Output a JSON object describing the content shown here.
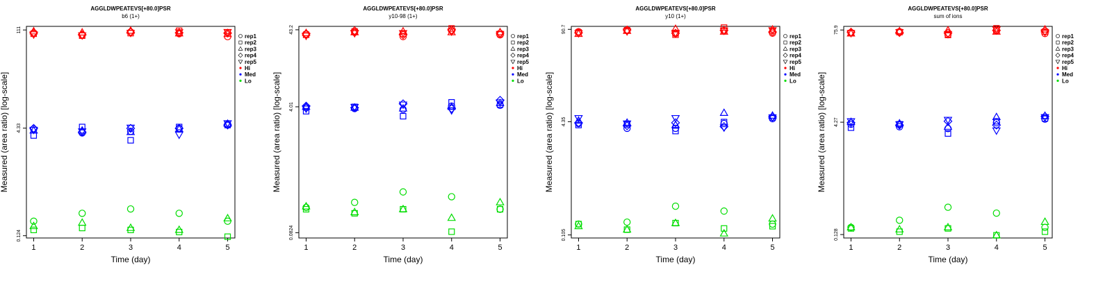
{
  "figure": {
    "name": "replicate-area-ratio-panels"
  },
  "legend": {
    "reps": [
      "rep1",
      "rep2",
      "rep3",
      "rep4",
      "rep5"
    ],
    "levels": [
      "Hi",
      "Med",
      "Lo"
    ]
  },
  "colors": {
    "Hi": "#ff0000",
    "Med": "#0000ff",
    "Lo": "#00dd00"
  },
  "chart_data": [
    {
      "type": "scatter",
      "title": "AGGLDWPEATEVS[+80.0]PSR",
      "subtitle": "b6 (1+)",
      "xlabel": "Time (day)",
      "ylabel": "Measured (area ratio) [log-scale]",
      "x": [
        1,
        2,
        3,
        4,
        5
      ],
      "ylim": [
        0.115,
        125
      ],
      "yscale": "log",
      "yticks": [
        "0.124",
        "4.33",
        "111"
      ],
      "series": [
        {
          "name": "rep1",
          "level": "Hi",
          "values": [
            100,
            94,
            104,
            98,
            89
          ]
        },
        {
          "name": "rep2",
          "level": "Hi",
          "values": [
            98,
            92,
            100,
            108,
            102
          ]
        },
        {
          "name": "rep3",
          "level": "Hi",
          "values": [
            106,
            102,
            108,
            99,
            97
          ]
        },
        {
          "name": "rep4",
          "level": "Hi",
          "values": [
            102,
            95,
            103,
            101,
            100
          ]
        },
        {
          "name": "rep5",
          "level": "Hi",
          "values": [
            96,
            93,
            101,
            103,
            104
          ]
        },
        {
          "name": "rep1",
          "level": "Med",
          "values": [
            4.2,
            3.7,
            3.9,
            4.3,
            4.9
          ]
        },
        {
          "name": "rep2",
          "level": "Med",
          "values": [
            3.4,
            4.5,
            2.9,
            4.5,
            4.8
          ]
        },
        {
          "name": "rep3",
          "level": "Med",
          "values": [
            4.0,
            4.0,
            3.8,
            4.2,
            5.0
          ]
        },
        {
          "name": "rep4",
          "level": "Med",
          "values": [
            4.3,
            3.8,
            4.3,
            4.3,
            4.8
          ]
        },
        {
          "name": "rep5",
          "level": "Med",
          "values": [
            4.1,
            3.9,
            4.4,
            3.5,
            5.1
          ]
        },
        {
          "name": "rep1",
          "level": "Lo",
          "values": [
            0.2,
            0.26,
            0.3,
            0.26,
            0.2
          ]
        },
        {
          "name": "rep2",
          "level": "Lo",
          "values": [
            0.15,
            0.16,
            0.15,
            0.14,
            0.12
          ]
        },
        {
          "name": "rep3",
          "level": "Lo",
          "values": [
            0.17,
            0.19,
            0.16,
            0.15,
            0.22
          ]
        }
      ]
    },
    {
      "type": "scatter",
      "title": "AGGLDWPEATEVS[+80.0]PSR",
      "subtitle": "y10-98 (1+)",
      "xlabel": "Time (day)",
      "ylabel": "Measured (area ratio) [log-scale]",
      "x": [
        1,
        2,
        3,
        4,
        5
      ],
      "ylim": [
        0.07,
        48
      ],
      "yscale": "log",
      "yticks": [
        "0.0824",
        "4.01",
        "43.2"
      ],
      "series": [
        {
          "name": "rep1",
          "level": "Hi",
          "values": [
            38,
            40,
            35,
            42,
            37
          ]
        },
        {
          "name": "rep2",
          "level": "Hi",
          "values": [
            37,
            41,
            38,
            45,
            38
          ]
        },
        {
          "name": "rep3",
          "level": "Hi",
          "values": [
            39,
            40,
            41,
            40,
            40
          ]
        },
        {
          "name": "rep4",
          "level": "Hi",
          "values": [
            38,
            42,
            37,
            43,
            39
          ]
        },
        {
          "name": "rep5",
          "level": "Hi",
          "values": [
            36,
            39,
            39,
            41,
            38
          ]
        },
        {
          "name": "rep1",
          "level": "Med",
          "values": [
            3.9,
            3.8,
            3.7,
            4.1,
            4.2
          ]
        },
        {
          "name": "rep2",
          "level": "Med",
          "values": [
            3.5,
            4.0,
            3.0,
            4.6,
            4.3
          ]
        },
        {
          "name": "rep3",
          "level": "Med",
          "values": [
            4.0,
            3.9,
            3.8,
            4.0,
            4.5
          ]
        },
        {
          "name": "rep4",
          "level": "Med",
          "values": [
            4.1,
            3.9,
            4.4,
            3.8,
            4.9
          ]
        },
        {
          "name": "rep5",
          "level": "Med",
          "values": [
            3.8,
            4.0,
            4.3,
            3.6,
            4.6
          ]
        },
        {
          "name": "rep1",
          "level": "Lo",
          "values": [
            0.18,
            0.21,
            0.29,
            0.25,
            0.17
          ]
        },
        {
          "name": "rep2",
          "level": "Lo",
          "values": [
            0.17,
            0.15,
            0.17,
            0.085,
            0.17
          ]
        },
        {
          "name": "rep3",
          "level": "Lo",
          "values": [
            0.185,
            0.155,
            0.17,
            0.13,
            0.21
          ]
        }
      ]
    },
    {
      "type": "scatter",
      "title": "AGGLDWPEATEVS[+80.0]PSR",
      "subtitle": "y10 (1+)",
      "xlabel": "Time (day)",
      "ylabel": "Measured (area ratio) [log-scale]",
      "x": [
        1,
        2,
        3,
        4,
        5
      ],
      "ylim": [
        0.095,
        100
      ],
      "yscale": "log",
      "yticks": [
        "0.105",
        "4.35",
        "90.7"
      ],
      "series": [
        {
          "name": "rep1",
          "level": "Hi",
          "values": [
            84,
            87,
            79,
            86,
            80
          ]
        },
        {
          "name": "rep2",
          "level": "Hi",
          "values": [
            82,
            88,
            76,
            96,
            86
          ]
        },
        {
          "name": "rep3",
          "level": "Hi",
          "values": [
            78,
            86,
            92,
            84,
            90
          ]
        },
        {
          "name": "rep4",
          "level": "Hi",
          "values": [
            81,
            89,
            80,
            88,
            83
          ]
        },
        {
          "name": "rep5",
          "level": "Hi",
          "values": [
            80,
            85,
            81,
            87,
            88
          ]
        },
        {
          "name": "rep1",
          "level": "Med",
          "values": [
            4.1,
            3.5,
            3.5,
            4.1,
            4.8
          ]
        },
        {
          "name": "rep2",
          "level": "Med",
          "values": [
            3.9,
            4.0,
            3.2,
            4.3,
            5.0
          ]
        },
        {
          "name": "rep3",
          "level": "Med",
          "values": [
            4.5,
            4.2,
            3.9,
            5.8,
            5.3
          ]
        },
        {
          "name": "rep4",
          "level": "Med",
          "values": [
            4.2,
            3.8,
            4.2,
            3.7,
            5.1
          ]
        },
        {
          "name": "rep5",
          "level": "Med",
          "values": [
            4.9,
            4.1,
            4.9,
            3.6,
            5.0
          ]
        },
        {
          "name": "rep1",
          "level": "Lo",
          "values": [
            0.15,
            0.16,
            0.27,
            0.23,
            0.15
          ]
        },
        {
          "name": "rep2",
          "level": "Lo",
          "values": [
            0.15,
            0.125,
            0.155,
            0.13,
            0.14
          ]
        },
        {
          "name": "rep3",
          "level": "Lo",
          "values": [
            0.14,
            0.125,
            0.155,
            0.11,
            0.18
          ]
        }
      ]
    },
    {
      "type": "scatter",
      "title": "AGGLDWPEATEVS[+80.0]PSR",
      "subtitle": "sum of ions",
      "xlabel": "Time (day)",
      "ylabel": "Measured (area ratio) [log-scale]",
      "x": [
        1,
        2,
        3,
        4,
        5
      ],
      "ylim": [
        0.115,
        85
      ],
      "yscale": "log",
      "yticks": [
        "0.128",
        "4.27",
        "75.9"
      ],
      "series": [
        {
          "name": "rep1",
          "level": "Hi",
          "values": [
            70,
            72,
            66,
            74,
            68
          ]
        },
        {
          "name": "rep2",
          "level": "Hi",
          "values": [
            69,
            71,
            65,
            80,
            72
          ]
        },
        {
          "name": "rep3",
          "level": "Hi",
          "values": [
            68,
            73,
            75,
            72,
            77
          ]
        },
        {
          "name": "rep4",
          "level": "Hi",
          "values": [
            71,
            70,
            69,
            75,
            74
          ]
        },
        {
          "name": "rep5",
          "level": "Hi",
          "values": [
            69,
            71,
            67,
            77,
            71
          ]
        },
        {
          "name": "rep1",
          "level": "Med",
          "values": [
            4.0,
            3.7,
            3.5,
            4.2,
            4.7
          ]
        },
        {
          "name": "rep2",
          "level": "Med",
          "values": [
            3.6,
            4.0,
            3.0,
            4.4,
            4.8
          ]
        },
        {
          "name": "rep3",
          "level": "Med",
          "values": [
            4.3,
            4.1,
            3.7,
            5.0,
            5.2
          ]
        },
        {
          "name": "rep4",
          "level": "Med",
          "values": [
            4.2,
            3.9,
            4.4,
            3.9,
            5.1
          ]
        },
        {
          "name": "rep5",
          "level": "Med",
          "values": [
            4.4,
            4.0,
            4.6,
            3.3,
            5.0
          ]
        },
        {
          "name": "rep1",
          "level": "Lo",
          "values": [
            0.16,
            0.2,
            0.3,
            0.25,
            0.16
          ]
        },
        {
          "name": "rep2",
          "level": "Lo",
          "values": [
            0.155,
            0.14,
            0.155,
            0.125,
            0.14
          ]
        },
        {
          "name": "rep3",
          "level": "Lo",
          "values": [
            0.16,
            0.15,
            0.16,
            0.125,
            0.19
          ]
        }
      ]
    }
  ]
}
